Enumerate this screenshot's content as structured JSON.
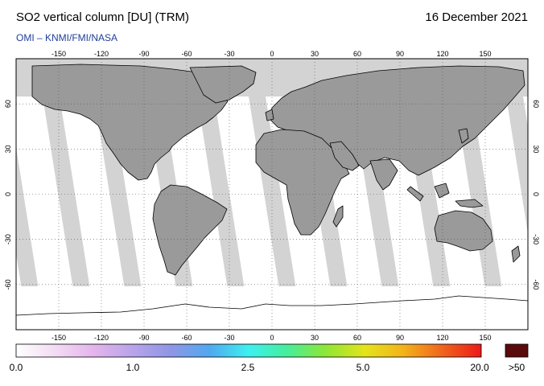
{
  "header": {
    "title": "SO2 vertical column [DU] (TRM)",
    "date": "16 December 2021",
    "subtitle": "OMI  –  KNMI/FMI/NASA"
  },
  "map": {
    "lon_ticks": [
      "-150",
      "-120",
      "-90",
      "-60",
      "-30",
      "0",
      "30",
      "60",
      "90",
      "120",
      "150"
    ],
    "lat_ticks": [
      "60",
      "30",
      "0",
      "-30",
      "-60"
    ]
  },
  "colorbar": {
    "labels": [
      "0.0",
      "1.0",
      "2.5",
      "5.0",
      "20.0"
    ],
    "overflow_label": ">50",
    "overflow_color": "#5a0a0a",
    "gradient_colors": [
      "#ffffff",
      "#f3dcf3",
      "#e4b4ec",
      "#b9a3ea",
      "#8e96e6",
      "#4fa9f0",
      "#3df0f0",
      "#46ee9a",
      "#8fe635",
      "#e4e41c",
      "#f3b21a",
      "#f0641d",
      "#ec1a1a"
    ]
  },
  "colors": {
    "land": "#9a9a9a",
    "no_data": "#d3d3d3",
    "data_swath": "#ffffff",
    "subtitle": "#1f3f9a"
  }
}
